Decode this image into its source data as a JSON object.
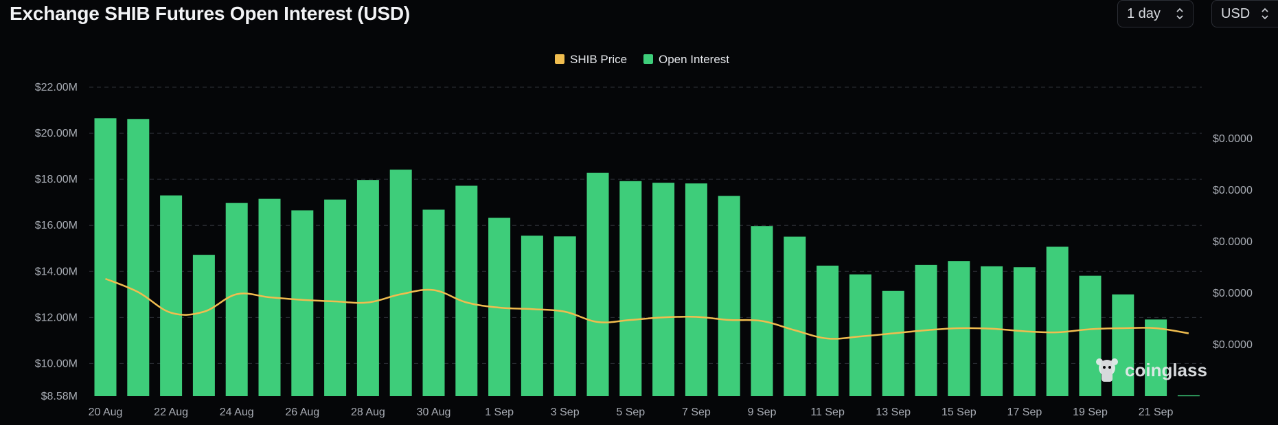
{
  "header": {
    "title": "Exchange SHIB Futures Open Interest (USD)",
    "interval_value": "1 day",
    "currency_value": "USD"
  },
  "watermark": {
    "text": "coinglass",
    "icon": "coinglass-logo-icon"
  },
  "colors": {
    "background": "#050608",
    "open_interest": "#3ecd7a",
    "shib_price": "#f0bd4f",
    "grid": "#2e3138",
    "tick_text": "#a9adb5"
  },
  "chart_data": {
    "type": "bar",
    "title": "Exchange SHIB Futures Open Interest (USD)",
    "legend": [
      "SHIB Price",
      "Open Interest"
    ],
    "legend_position": "top-center",
    "categories": [
      "20 Aug",
      "21 Aug",
      "22 Aug",
      "23 Aug",
      "24 Aug",
      "25 Aug",
      "26 Aug",
      "27 Aug",
      "28 Aug",
      "29 Aug",
      "30 Aug",
      "31 Aug",
      "1 Sep",
      "2 Sep",
      "3 Sep",
      "4 Sep",
      "5 Sep",
      "6 Sep",
      "7 Sep",
      "8 Sep",
      "9 Sep",
      "10 Sep",
      "11 Sep",
      "12 Sep",
      "13 Sep",
      "14 Sep",
      "15 Sep",
      "16 Sep",
      "17 Sep",
      "18 Sep",
      "19 Sep",
      "20 Sep",
      "21 Sep",
      "22 Sep"
    ],
    "x_tick_labels": [
      "20 Aug",
      "22 Aug",
      "24 Aug",
      "26 Aug",
      "28 Aug",
      "30 Aug",
      "1 Sep",
      "3 Sep",
      "5 Sep",
      "7 Sep",
      "9 Sep",
      "11 Sep",
      "13 Sep",
      "15 Sep",
      "17 Sep",
      "19 Sep",
      "21 Sep"
    ],
    "series": [
      {
        "name": "Open Interest",
        "axis": "left",
        "kind": "bar",
        "values": [
          20.65,
          20.62,
          17.3,
          14.72,
          16.97,
          17.15,
          16.65,
          17.12,
          17.97,
          18.42,
          16.68,
          17.72,
          16.33,
          15.55,
          15.52,
          18.28,
          17.92,
          17.85,
          17.82,
          17.28,
          15.97,
          15.51,
          14.25,
          13.87,
          13.15,
          14.28,
          14.45,
          14.22,
          14.18,
          15.07,
          13.81,
          13.0,
          11.91,
          8.62
        ]
      },
      {
        "name": "SHIB Price",
        "axis": "right",
        "kind": "line",
        "values": [
          0.514,
          0.501,
          0.481,
          0.482,
          0.499,
          0.496,
          0.4935,
          0.492,
          0.491,
          0.499,
          0.503,
          0.491,
          0.486,
          0.4845,
          0.482,
          0.472,
          0.474,
          0.4765,
          0.477,
          0.474,
          0.473,
          0.464,
          0.456,
          0.458,
          0.461,
          0.464,
          0.466,
          0.4655,
          0.463,
          0.462,
          0.465,
          0.466,
          0.466,
          0.461
        ]
      }
    ],
    "y_left": {
      "label": "",
      "range": [
        8.58,
        22.0
      ],
      "ticks": [
        8.58,
        10.0,
        12.0,
        14.0,
        16.0,
        18.0,
        20.0,
        22.0
      ],
      "tick_labels": [
        "$8.58M",
        "$10.00M",
        "$12.00M",
        "$14.00M",
        "$16.00M",
        "$18.00M",
        "$20.00M",
        "$22.00M"
      ]
    },
    "y_right": {
      "label": "",
      "range": [
        0.4,
        0.7
      ],
      "ticks": [
        0.45,
        0.5,
        0.55,
        0.6,
        0.65
      ],
      "tick_labels": [
        "$0.0000",
        "$0.0000",
        "$0.0000",
        "$0.0000",
        "$0.0000"
      ]
    },
    "grid": true
  }
}
